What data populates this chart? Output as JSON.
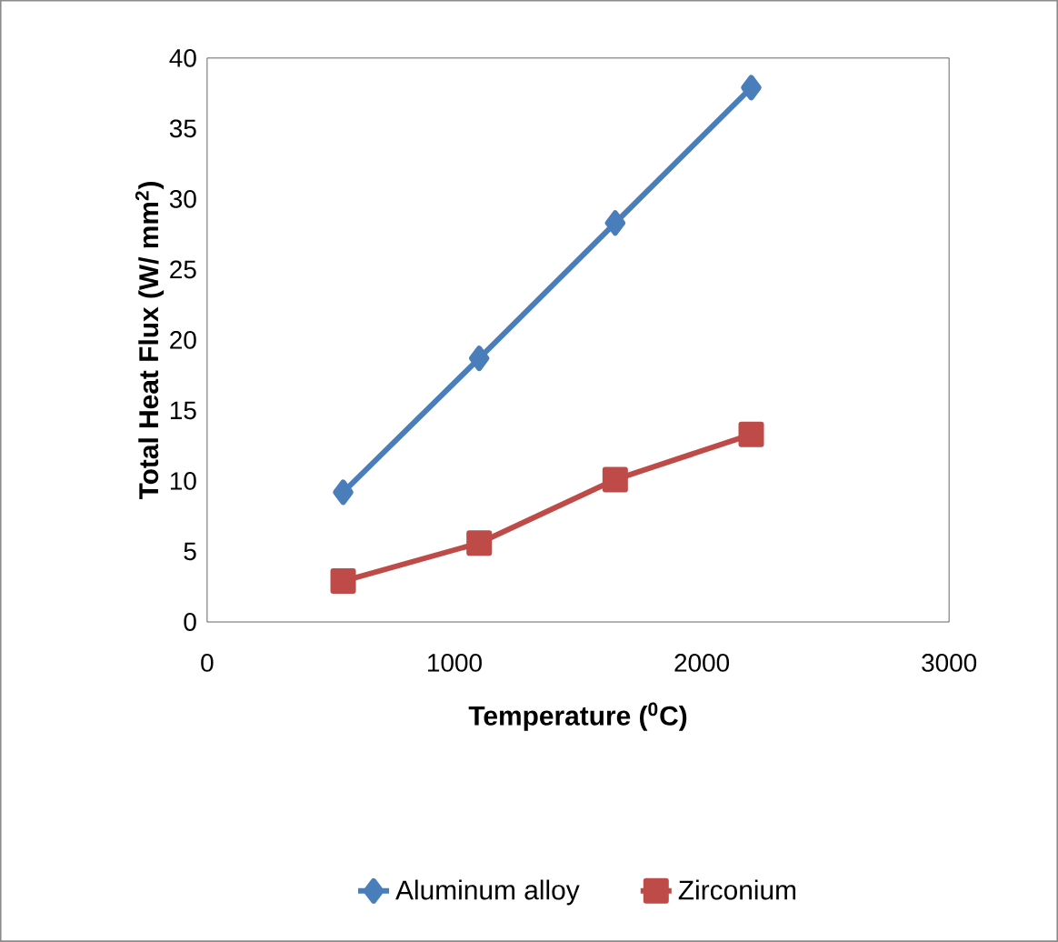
{
  "chart_data": {
    "type": "line",
    "xlabel": "Temperature ($^{0}$C)",
    "ylabel": "Total Heat Flux (W/ mm$^{2}$)",
    "xlim": [
      0,
      3000
    ],
    "xticks": [
      0,
      1000,
      2000,
      3000
    ],
    "ylim": [
      0,
      40
    ],
    "yticks": [
      0,
      5,
      10,
      15,
      20,
      25,
      30,
      35,
      40
    ],
    "grid": false,
    "legend": "bottom",
    "line_style": "solid",
    "series": [
      {
        "name": "Aluminum alloy",
        "color": "#4a7ebb",
        "marker": "diamond",
        "x": [
          550,
          1100,
          1650,
          2200
        ],
        "values": [
          9.2,
          18.7,
          28.3,
          37.9
        ]
      },
      {
        "name": "Zirconium",
        "color": "#be4b48",
        "marker": "square",
        "x": [
          550,
          1100,
          1650,
          2200
        ],
        "values": [
          2.9,
          5.6,
          10.1,
          13.3
        ]
      }
    ]
  }
}
